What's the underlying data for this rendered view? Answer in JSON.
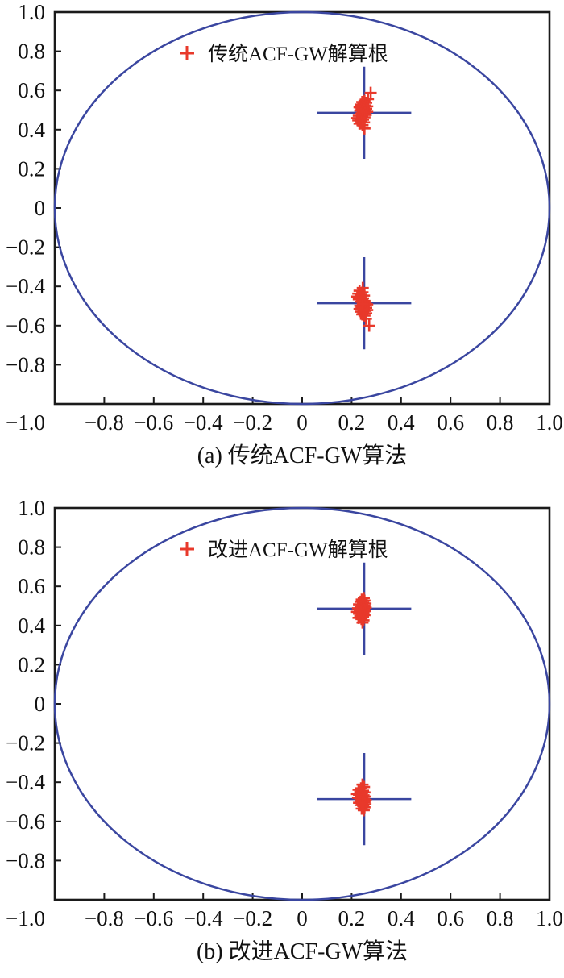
{
  "page": {
    "background": "#ffffff"
  },
  "colors": {
    "circle_line": "#3a46a0",
    "marker_red": "#e8392b",
    "frame": "#1a1a1a",
    "text": "#111111"
  },
  "chart_data": [
    {
      "type": "scatter",
      "title": "(a) 传统ACF-GW算法",
      "legend_label": "传统ACF-GW解算根",
      "legend_marker": "plus-icon",
      "legend_position": "top-center",
      "grid": false,
      "unit_circle": true,
      "xlim": [
        -1,
        1
      ],
      "ylim": [
        -1,
        1
      ],
      "x_ticks": [
        {
          "v": -0.8,
          "label": "−0.8"
        },
        {
          "v": -0.6,
          "label": "−0.6"
        },
        {
          "v": -0.4,
          "label": "−0.4"
        },
        {
          "v": -0.2,
          "label": "−0.2"
        },
        {
          "v": 0,
          "label": "0"
        },
        {
          "v": 0.2,
          "label": "0.2"
        },
        {
          "v": 0.4,
          "label": "0.4"
        },
        {
          "v": 0.6,
          "label": "0.6"
        },
        {
          "v": 0.8,
          "label": "0.8"
        },
        {
          "v": 1.0,
          "label": "1.0"
        }
      ],
      "y_ticks": [
        {
          "v": 1.0,
          "label": "1.0"
        },
        {
          "v": 0.8,
          "label": "0.8"
        },
        {
          "v": 0.6,
          "label": "0.6"
        },
        {
          "v": 0.4,
          "label": "0.4"
        },
        {
          "v": 0.2,
          "label": "0.2"
        },
        {
          "v": 0,
          "label": "0"
        },
        {
          "v": -0.2,
          "label": "−0.2"
        },
        {
          "v": -0.4,
          "label": "−0.4"
        },
        {
          "v": -0.6,
          "label": "−0.6"
        },
        {
          "v": -0.8,
          "label": "−0.8"
        }
      ],
      "corner_tick_label": "−1.0",
      "true_roots": [
        {
          "x": 0.251,
          "y": 0.486
        },
        {
          "x": 0.251,
          "y": -0.486
        }
      ],
      "root_marker_half_extent": {
        "h": 0.19,
        "v": 0.235
      },
      "series": [
        {
          "name": "传统ACF-GW解算根",
          "marker": "plus",
          "color": "#e8392b",
          "points": [
            [
              0.277,
              0.588
            ],
            [
              0.266,
              0.556
            ],
            [
              0.252,
              0.547
            ],
            [
              0.243,
              0.541
            ],
            [
              0.259,
              0.537
            ],
            [
              0.247,
              0.531
            ],
            [
              0.237,
              0.528
            ],
            [
              0.256,
              0.524
            ],
            [
              0.263,
              0.519
            ],
            [
              0.244,
              0.517
            ],
            [
              0.232,
              0.514
            ],
            [
              0.25,
              0.511
            ],
            [
              0.259,
              0.507
            ],
            [
              0.24,
              0.505
            ],
            [
              0.249,
              0.501
            ],
            [
              0.235,
              0.497
            ],
            [
              0.254,
              0.494
            ],
            [
              0.263,
              0.491
            ],
            [
              0.245,
              0.489
            ],
            [
              0.255,
              0.485
            ],
            [
              0.237,
              0.482
            ],
            [
              0.247,
              0.479
            ],
            [
              0.257,
              0.475
            ],
            [
              0.229,
              0.471
            ],
            [
              0.242,
              0.467
            ],
            [
              0.252,
              0.463
            ],
            [
              0.223,
              0.459
            ],
            [
              0.236,
              0.454
            ],
            [
              0.246,
              0.451
            ],
            [
              0.227,
              0.447
            ],
            [
              0.239,
              0.442
            ],
            [
              0.25,
              0.437
            ],
            [
              0.232,
              0.431
            ],
            [
              0.244,
              0.423
            ],
            [
              0.252,
              0.406
            ],
            [
              0.245,
              -0.408
            ],
            [
              0.232,
              -0.422
            ],
            [
              0.244,
              -0.43
            ],
            [
              0.227,
              -0.437
            ],
            [
              0.239,
              -0.442
            ],
            [
              0.25,
              -0.447
            ],
            [
              0.223,
              -0.452
            ],
            [
              0.236,
              -0.456
            ],
            [
              0.246,
              -0.461
            ],
            [
              0.229,
              -0.466
            ],
            [
              0.242,
              -0.47
            ],
            [
              0.252,
              -0.474
            ],
            [
              0.237,
              -0.478
            ],
            [
              0.247,
              -0.482
            ],
            [
              0.257,
              -0.486
            ],
            [
              0.263,
              -0.492
            ],
            [
              0.254,
              -0.495
            ],
            [
              0.235,
              -0.498
            ],
            [
              0.249,
              -0.502
            ],
            [
              0.24,
              -0.506
            ],
            [
              0.259,
              -0.509
            ],
            [
              0.25,
              -0.512
            ],
            [
              0.232,
              -0.515
            ],
            [
              0.244,
              -0.518
            ],
            [
              0.263,
              -0.521
            ],
            [
              0.256,
              -0.525
            ],
            [
              0.237,
              -0.529
            ],
            [
              0.247,
              -0.533
            ],
            [
              0.259,
              -0.538
            ],
            [
              0.243,
              -0.543
            ],
            [
              0.252,
              -0.549
            ],
            [
              0.258,
              -0.565
            ],
            [
              0.271,
              -0.601
            ],
            [
              0.248,
              -0.522
            ],
            [
              0.245,
              -0.49
            ]
          ]
        }
      ]
    },
    {
      "type": "scatter",
      "title": "(b) 改进ACF-GW算法",
      "legend_label": "改进ACF-GW解算根",
      "legend_marker": "plus-icon",
      "legend_position": "top-center",
      "grid": false,
      "unit_circle": true,
      "xlim": [
        -1,
        1
      ],
      "ylim": [
        -1,
        1
      ],
      "x_ticks": [
        {
          "v": -0.8,
          "label": "−0.8"
        },
        {
          "v": -0.6,
          "label": "−0.6"
        },
        {
          "v": -0.4,
          "label": "−0.4"
        },
        {
          "v": -0.2,
          "label": "−0.2"
        },
        {
          "v": 0,
          "label": "0"
        },
        {
          "v": 0.2,
          "label": "0.2"
        },
        {
          "v": 0.4,
          "label": "0.4"
        },
        {
          "v": 0.6,
          "label": "0.6"
        },
        {
          "v": 0.8,
          "label": "0.8"
        },
        {
          "v": 1.0,
          "label": "1.0"
        }
      ],
      "y_ticks": [
        {
          "v": 1.0,
          "label": "1.0"
        },
        {
          "v": 0.8,
          "label": "0.8"
        },
        {
          "v": 0.6,
          "label": "0.6"
        },
        {
          "v": 0.4,
          "label": "0.4"
        },
        {
          "v": 0.2,
          "label": "0.2"
        },
        {
          "v": 0,
          "label": "0"
        },
        {
          "v": -0.2,
          "label": "−0.2"
        },
        {
          "v": -0.4,
          "label": "−0.4"
        },
        {
          "v": -0.6,
          "label": "−0.6"
        },
        {
          "v": -0.8,
          "label": "−0.8"
        }
      ],
      "corner_tick_label": "−1.0",
      "true_roots": [
        {
          "x": 0.251,
          "y": 0.486
        },
        {
          "x": 0.251,
          "y": -0.486
        }
      ],
      "root_marker_half_extent": {
        "h": 0.19,
        "v": 0.235
      },
      "series": [
        {
          "name": "改进ACF-GW解算根",
          "marker": "plus",
          "color": "#e8392b",
          "points": [
            [
              0.249,
              0.54
            ],
            [
              0.241,
              0.532
            ],
            [
              0.252,
              0.527
            ],
            [
              0.236,
              0.521
            ],
            [
              0.247,
              0.517
            ],
            [
              0.256,
              0.512
            ],
            [
              0.23,
              0.508
            ],
            [
              0.243,
              0.505
            ],
            [
              0.252,
              0.501
            ],
            [
              0.238,
              0.497
            ],
            [
              0.247,
              0.494
            ],
            [
              0.257,
              0.491
            ],
            [
              0.226,
              0.488
            ],
            [
              0.24,
              0.485
            ],
            [
              0.25,
              0.482
            ],
            [
              0.233,
              0.479
            ],
            [
              0.244,
              0.476
            ],
            [
              0.254,
              0.473
            ],
            [
              0.222,
              0.47
            ],
            [
              0.237,
              0.467
            ],
            [
              0.248,
              0.464
            ],
            [
              0.23,
              0.46
            ],
            [
              0.242,
              0.457
            ],
            [
              0.252,
              0.453
            ],
            [
              0.235,
              0.449
            ],
            [
              0.246,
              0.444
            ],
            [
              0.228,
              0.439
            ],
            [
              0.24,
              0.433
            ],
            [
              0.248,
              0.426
            ],
            [
              0.244,
              0.415
            ],
            [
              0.244,
              -0.412
            ],
            [
              0.25,
              -0.424
            ],
            [
              0.238,
              -0.431
            ],
            [
              0.228,
              -0.438
            ],
            [
              0.246,
              -0.443
            ],
            [
              0.235,
              -0.448
            ],
            [
              0.252,
              -0.452
            ],
            [
              0.242,
              -0.456
            ],
            [
              0.222,
              -0.46
            ],
            [
              0.23,
              -0.464
            ],
            [
              0.248,
              -0.467
            ],
            [
              0.237,
              -0.47
            ],
            [
              0.254,
              -0.473
            ],
            [
              0.244,
              -0.476
            ],
            [
              0.226,
              -0.479
            ],
            [
              0.233,
              -0.482
            ],
            [
              0.25,
              -0.485
            ],
            [
              0.24,
              -0.488
            ],
            [
              0.257,
              -0.491
            ],
            [
              0.247,
              -0.494
            ],
            [
              0.238,
              -0.497
            ],
            [
              0.252,
              -0.501
            ],
            [
              0.23,
              -0.505
            ],
            [
              0.243,
              -0.508
            ],
            [
              0.256,
              -0.512
            ],
            [
              0.236,
              -0.517
            ],
            [
              0.247,
              -0.522
            ],
            [
              0.252,
              -0.528
            ],
            [
              0.241,
              -0.535
            ],
            [
              0.249,
              -0.543
            ]
          ]
        }
      ]
    }
  ]
}
